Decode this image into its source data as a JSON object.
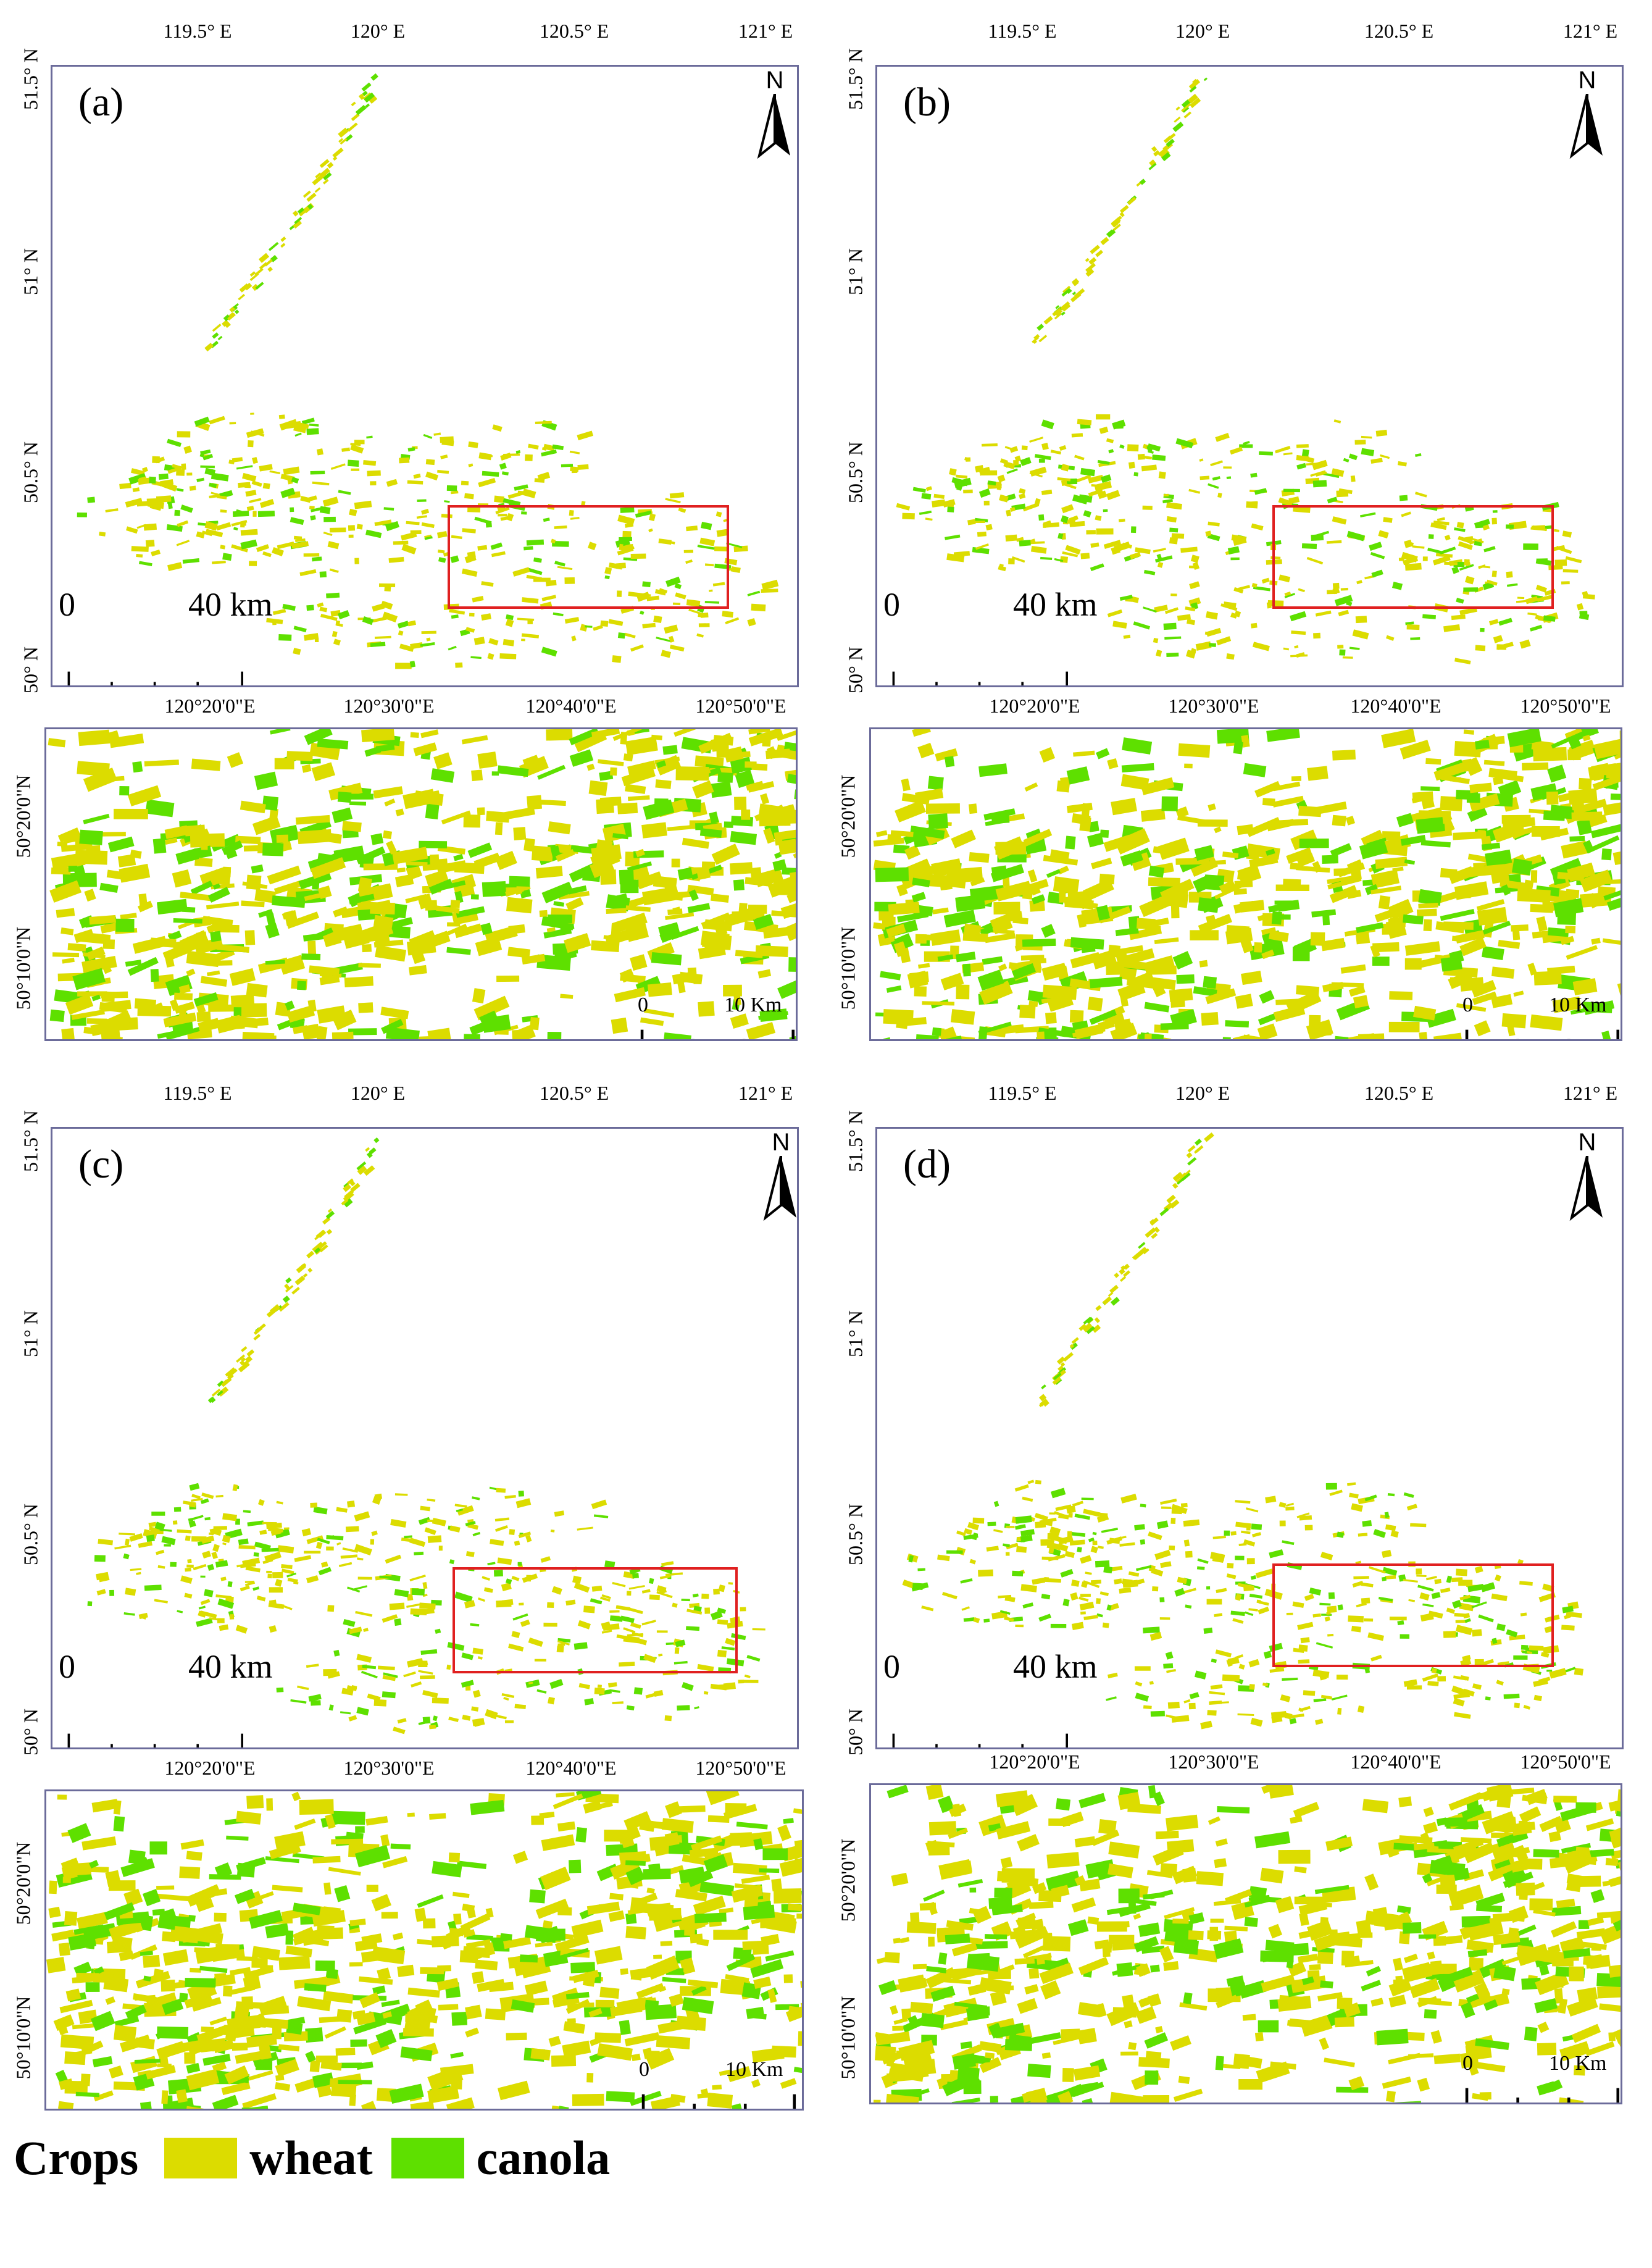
{
  "colors": {
    "wheat": "#dcdc00",
    "canola": "#5ee000",
    "frame": "#6b6b9a",
    "highlight_box": "#e02020"
  },
  "overview_axes": {
    "lon_ticks": [
      "119.5° E",
      "120° E",
      "120.5° E",
      "121° E"
    ],
    "lat_ticks": [
      "51.5° N",
      "51° N",
      "50.5° N",
      "50° N"
    ]
  },
  "inset_axes": {
    "lon_ticks": [
      "120°20'0\"E",
      "120°30'0\"E",
      "120°40'0\"E",
      "120°50'0\"E"
    ],
    "lat_ticks": [
      "50°20'0\"N",
      "50°10'0\"N"
    ]
  },
  "north_arrow": "N",
  "overview_scale": {
    "start": "0",
    "end": "40 km"
  },
  "inset_scale": {
    "start": "0",
    "end": "10 Km"
  },
  "panels": [
    {
      "label": "(a)"
    },
    {
      "label": "(b)"
    },
    {
      "label": "(c)"
    },
    {
      "label": "(d)"
    }
  ],
  "legend": {
    "title": "Crops",
    "items": [
      {
        "name": "wheat"
      },
      {
        "name": "canola"
      }
    ]
  }
}
